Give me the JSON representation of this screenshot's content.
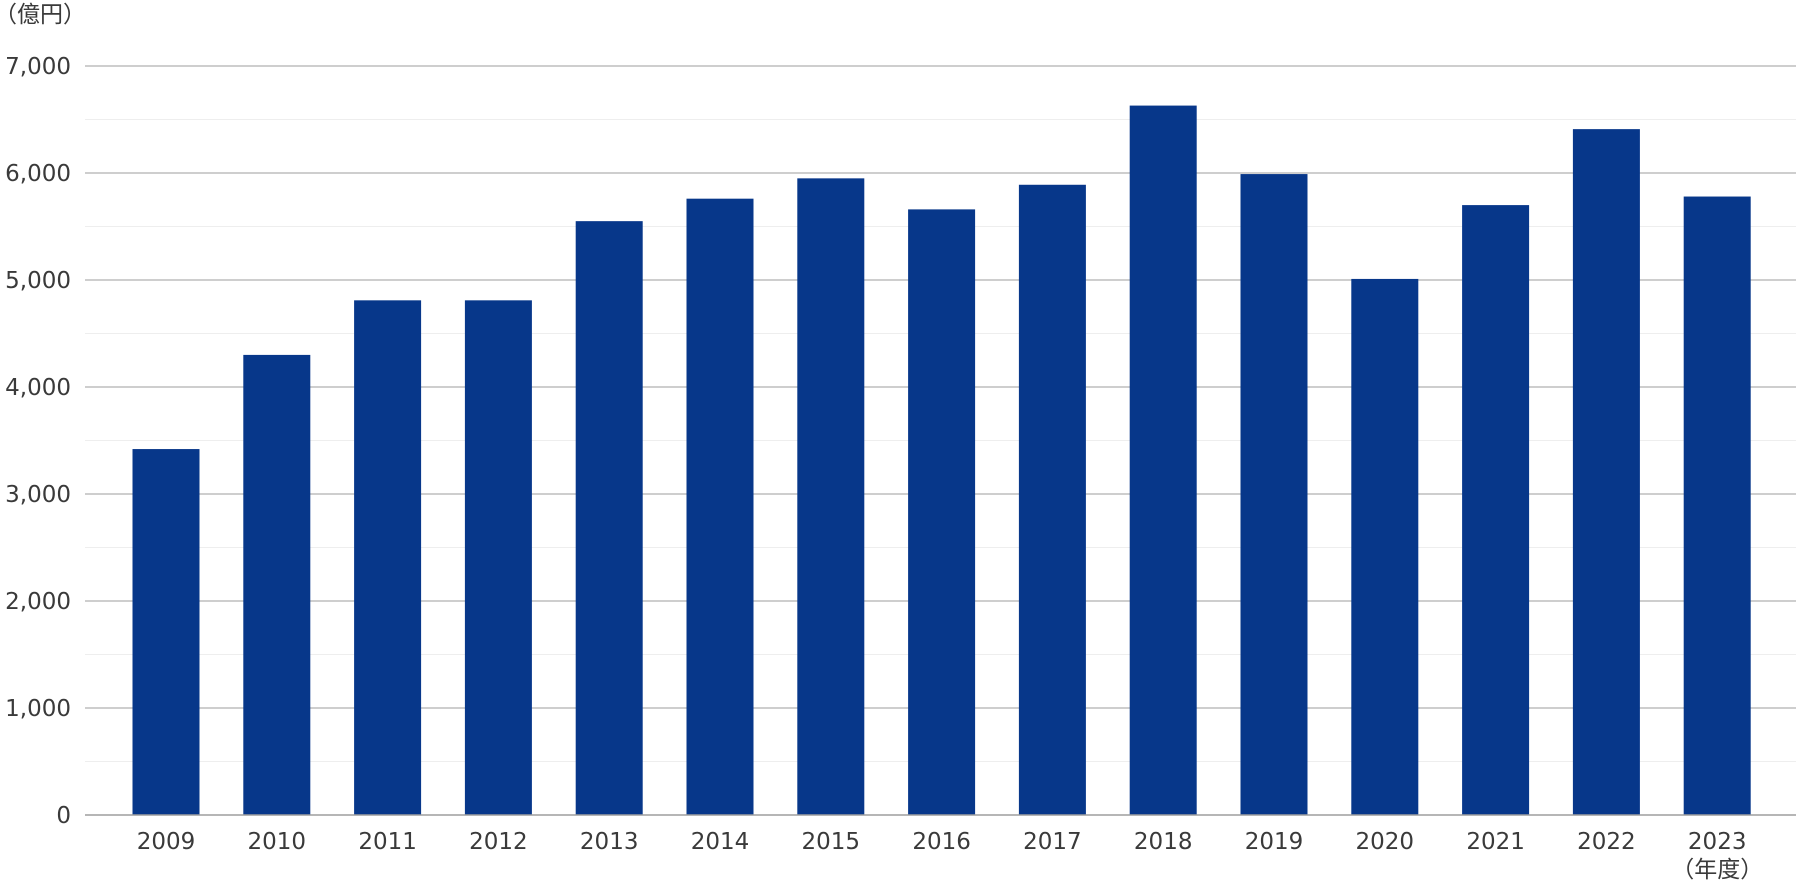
{
  "chart_data": {
    "type": "bar",
    "title": "",
    "xlabel": "",
    "ylabel": "",
    "y_unit_label": "（億円）",
    "x_unit_label": "（年度）",
    "categories": [
      "2009",
      "2010",
      "2011",
      "2012",
      "2013",
      "2014",
      "2015",
      "2016",
      "2017",
      "2018",
      "2019",
      "2020",
      "2021",
      "2022",
      "2023"
    ],
    "values": [
      3420,
      4300,
      4810,
      4810,
      5550,
      5760,
      5950,
      5660,
      5890,
      6630,
      5990,
      5010,
      5700,
      6410,
      5780
    ],
    "ylim": [
      0,
      7000
    ],
    "yticks": [
      0,
      1000,
      2000,
      3000,
      4000,
      5000,
      6000,
      7000
    ],
    "ytick_labels": [
      "0",
      "1,000",
      "2,000",
      "3,000",
      "4,000",
      "5,000",
      "6,000",
      "7,000"
    ],
    "grid": true,
    "minor_grid": true,
    "bar_color": "#07378a",
    "grid_color": "#bdbdbd",
    "minor_grid_color": "#eeeeee"
  }
}
